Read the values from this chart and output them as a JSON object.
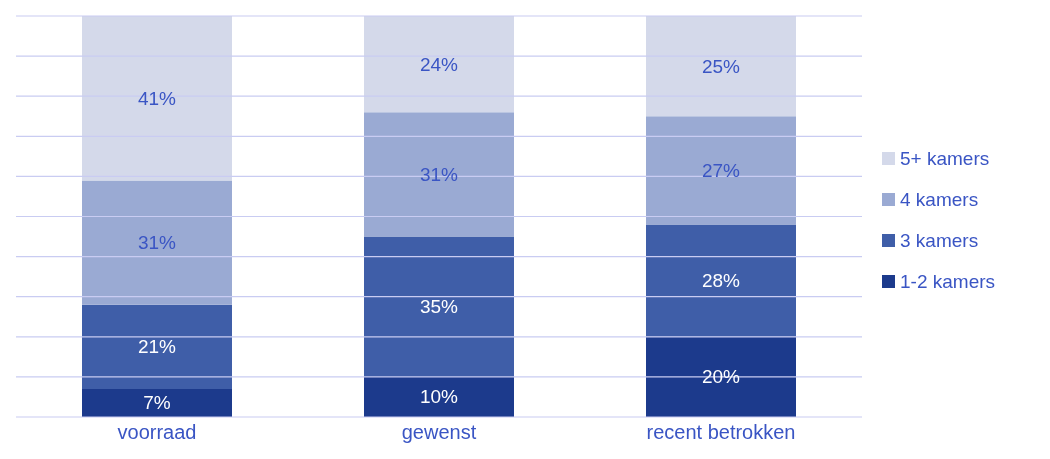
{
  "chart_data": {
    "type": "bar",
    "stacked": true,
    "categories": [
      "voorraad",
      "gewenst",
      "recent betrokken"
    ],
    "series": [
      {
        "name": "1-2 kamers",
        "color": "#1c3a8c",
        "values": [
          7,
          10,
          20
        ],
        "value_labels": [
          "7%",
          "10%",
          "20%"
        ]
      },
      {
        "name": "3 kamers",
        "color": "#3f5ea8",
        "values": [
          21,
          35,
          28
        ],
        "value_labels": [
          "21%",
          "35%",
          "28%"
        ]
      },
      {
        "name": "4 kamers",
        "color": "#9aaad3",
        "values": [
          31,
          31,
          27
        ],
        "value_labels": [
          "31%",
          "31%",
          "27%"
        ]
      },
      {
        "name": "5+ kamers",
        "color": "#d4d9ea",
        "values": [
          41,
          24,
          25
        ],
        "value_labels": [
          "41%",
          "24%",
          "25%"
        ]
      }
    ],
    "ylim": [
      0,
      100
    ],
    "yticks": [
      {
        "value": 0,
        "label": null
      },
      {
        "value": 10,
        "label": null
      },
      {
        "value": 20,
        "label": null
      },
      {
        "value": 30,
        "label": null
      },
      {
        "value": 40,
        "label": null
      },
      {
        "value": 50,
        "label": null
      },
      {
        "value": 60,
        "label": null
      },
      {
        "value": 70,
        "label": null
      },
      {
        "value": 80,
        "label": null
      },
      {
        "value": 90,
        "label": null
      },
      {
        "value": 100,
        "label": null
      }
    ],
    "grid": "y",
    "tick_labels": "x",
    "legend": "right"
  }
}
